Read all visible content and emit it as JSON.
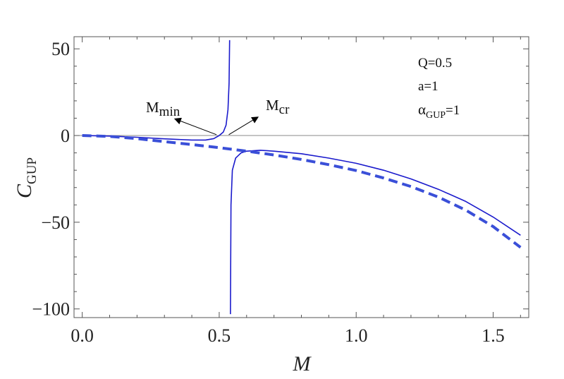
{
  "chart_data": {
    "type": "line",
    "xlabel": "M",
    "ylabel_main": "C",
    "ylabel_sub": "GUP",
    "xlim": [
      -0.03,
      1.63
    ],
    "ylim": [
      -105,
      57
    ],
    "xticks": [
      0.0,
      0.5,
      1.0,
      1.5
    ],
    "xtick_labels": [
      "0.0",
      "0.5",
      "1.0",
      "1.5"
    ],
    "yticks": [
      -100,
      -50,
      0,
      50
    ],
    "ytick_labels": [
      "−100",
      "−50",
      "0",
      "50"
    ],
    "grid": false,
    "zero_line": true,
    "series": [
      {
        "style": "solid",
        "color": "#1a1acc",
        "segments": [
          [
            [
              0.0,
              0.0
            ],
            [
              0.1,
              -0.3
            ],
            [
              0.2,
              -1.0
            ],
            [
              0.3,
              -1.9
            ],
            [
              0.4,
              -2.6
            ],
            [
              0.45,
              -2.6
            ],
            [
              0.48,
              -1.8
            ],
            [
              0.5,
              0.0
            ],
            [
              0.515,
              2.0
            ],
            [
              0.525,
              6.0
            ],
            [
              0.532,
              15.0
            ],
            [
              0.536,
              30.0
            ],
            [
              0.538,
              55.0
            ]
          ],
          [
            [
              0.541,
              -103.0
            ],
            [
              0.543,
              -40.0
            ],
            [
              0.548,
              -20.0
            ],
            [
              0.56,
              -13.0
            ],
            [
              0.58,
              -10.0
            ],
            [
              0.6,
              -9.0
            ],
            [
              0.65,
              -8.5
            ],
            [
              0.7,
              -9.0
            ],
            [
              0.8,
              -10.5
            ],
            [
              0.9,
              -13.0
            ],
            [
              1.0,
              -16.0
            ],
            [
              1.1,
              -20.0
            ],
            [
              1.2,
              -25.0
            ],
            [
              1.3,
              -31.0
            ],
            [
              1.4,
              -38.0
            ],
            [
              1.5,
              -47.0
            ],
            [
              1.6,
              -57.5
            ]
          ]
        ]
      },
      {
        "style": "dashed",
        "color": "#3a4fd8",
        "segments": [
          [
            [
              0.0,
              0.0
            ],
            [
              0.1,
              -0.5
            ],
            [
              0.2,
              -1.8
            ],
            [
              0.3,
              -3.5
            ],
            [
              0.4,
              -5.2
            ],
            [
              0.5,
              -7.0
            ],
            [
              0.6,
              -9.0
            ],
            [
              0.7,
              -11.2
            ],
            [
              0.8,
              -13.8
            ],
            [
              0.9,
              -16.8
            ],
            [
              1.0,
              -20.2
            ],
            [
              1.1,
              -24.5
            ],
            [
              1.2,
              -29.4
            ],
            [
              1.3,
              -35.5
            ],
            [
              1.4,
              -43.0
            ],
            [
              1.5,
              -52.5
            ],
            [
              1.6,
              -64.5
            ]
          ]
        ]
      }
    ],
    "annotations": [
      {
        "id": "mmin",
        "main": "M",
        "sub": "min",
        "x": 0.32,
        "y": 10.2,
        "arrow_from": [
          0.49,
          0.5
        ],
        "arrow_to": [
          0.34,
          9.5
        ]
      },
      {
        "id": "mcr",
        "main": "M",
        "sub": "cr",
        "x": 0.67,
        "y": 11.5,
        "arrow_from": [
          0.535,
          0.5
        ],
        "arrow_to": [
          0.64,
          10.5
        ]
      }
    ],
    "legend_text": {
      "q": "Q=0.5",
      "a": "a=1",
      "alpha_main": "α",
      "alpha_sub": "GUP",
      "alpha_val": "=1"
    }
  }
}
